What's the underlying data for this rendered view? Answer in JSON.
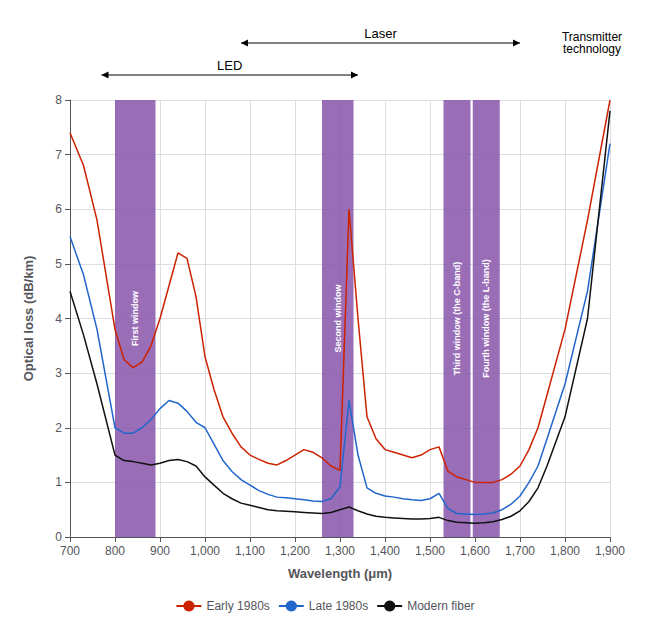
{
  "chart_data": {
    "type": "line",
    "xlabel": "Wavelength (μm)",
    "ylabel": "Optical loss (dB/km)",
    "xlim": [
      700,
      1900
    ],
    "ylim": [
      0,
      8
    ],
    "xticks": [
      700,
      800,
      900,
      1000,
      1100,
      1200,
      1300,
      1400,
      1500,
      1600,
      1700,
      1800,
      1900
    ],
    "yticks": [
      0,
      1,
      2,
      3,
      4,
      5,
      6,
      7,
      8
    ],
    "grid": true,
    "legend": "bottom",
    "windows": [
      {
        "x": 800,
        "width": 90,
        "label": "First window",
        "color": "#8855aa"
      },
      {
        "x": 1260,
        "width": 70,
        "label": "Second window",
        "color": "#8855aa"
      },
      {
        "x": 1530,
        "width": 60,
        "label": "Third window (the C-band)",
        "color": "#8855aa"
      },
      {
        "x": 1595,
        "width": 60,
        "label": "Fourth window (the L-band)",
        "color": "#8855aa"
      }
    ],
    "annotations": [
      {
        "text": "LED",
        "x1": 770,
        "x2": 1340
      },
      {
        "text": "Laser",
        "x1": 1080,
        "x2": 1700
      },
      {
        "text": "Transmitter\ntechnology"
      }
    ],
    "series": [
      {
        "name": "Early 1980s",
        "color": "#cc2200",
        "x": [
          700,
          730,
          760,
          800,
          820,
          840,
          860,
          880,
          900,
          920,
          940,
          960,
          980,
          1000,
          1020,
          1040,
          1060,
          1080,
          1100,
          1120,
          1140,
          1160,
          1180,
          1200,
          1220,
          1240,
          1260,
          1280,
          1300,
          1320,
          1340,
          1360,
          1380,
          1400,
          1420,
          1440,
          1460,
          1480,
          1500,
          1520,
          1540,
          1560,
          1580,
          1600,
          1620,
          1640,
          1660,
          1680,
          1700,
          1720,
          1740,
          1760,
          1800,
          1850,
          1900
        ],
        "values": [
          7.4,
          6.8,
          5.8,
          3.8,
          3.25,
          3.1,
          3.2,
          3.5,
          4.0,
          4.6,
          5.2,
          5.1,
          4.4,
          3.3,
          2.7,
          2.2,
          1.9,
          1.65,
          1.5,
          1.42,
          1.35,
          1.32,
          1.4,
          1.5,
          1.6,
          1.55,
          1.45,
          1.3,
          1.22,
          6.0,
          4.0,
          2.2,
          1.8,
          1.6,
          1.55,
          1.5,
          1.45,
          1.5,
          1.6,
          1.65,
          1.2,
          1.1,
          1.05,
          1.0,
          1.0,
          1.0,
          1.05,
          1.15,
          1.3,
          1.6,
          2.0,
          2.6,
          3.8,
          5.8,
          8.0
        ]
      },
      {
        "name": "Late 1980s",
        "color": "#2266cc",
        "x": [
          700,
          730,
          760,
          800,
          820,
          840,
          860,
          880,
          900,
          920,
          940,
          960,
          980,
          1000,
          1020,
          1040,
          1060,
          1080,
          1100,
          1120,
          1140,
          1160,
          1180,
          1200,
          1220,
          1240,
          1260,
          1280,
          1300,
          1320,
          1340,
          1360,
          1380,
          1400,
          1420,
          1440,
          1460,
          1480,
          1500,
          1520,
          1540,
          1560,
          1580,
          1600,
          1620,
          1640,
          1660,
          1680,
          1700,
          1720,
          1740,
          1760,
          1800,
          1850,
          1900
        ],
        "values": [
          5.5,
          4.8,
          3.8,
          2.0,
          1.9,
          1.9,
          2.0,
          2.15,
          2.35,
          2.5,
          2.45,
          2.3,
          2.1,
          2.0,
          1.7,
          1.4,
          1.2,
          1.05,
          0.95,
          0.85,
          0.78,
          0.73,
          0.72,
          0.7,
          0.68,
          0.66,
          0.65,
          0.7,
          0.92,
          2.5,
          1.5,
          0.9,
          0.8,
          0.75,
          0.73,
          0.7,
          0.68,
          0.67,
          0.7,
          0.8,
          0.52,
          0.43,
          0.42,
          0.41,
          0.42,
          0.44,
          0.5,
          0.6,
          0.75,
          1.0,
          1.3,
          1.8,
          2.8,
          4.5,
          7.2
        ]
      },
      {
        "name": "Modern fiber",
        "color": "#111111",
        "x": [
          700,
          730,
          760,
          800,
          820,
          840,
          860,
          880,
          900,
          920,
          940,
          960,
          980,
          1000,
          1020,
          1040,
          1060,
          1080,
          1100,
          1120,
          1140,
          1160,
          1180,
          1200,
          1220,
          1240,
          1260,
          1280,
          1300,
          1320,
          1340,
          1360,
          1380,
          1400,
          1420,
          1440,
          1460,
          1480,
          1500,
          1520,
          1540,
          1560,
          1580,
          1600,
          1620,
          1640,
          1660,
          1680,
          1700,
          1720,
          1740,
          1760,
          1800,
          1850,
          1900
        ],
        "values": [
          4.5,
          3.7,
          2.8,
          1.5,
          1.4,
          1.38,
          1.35,
          1.32,
          1.35,
          1.4,
          1.42,
          1.38,
          1.3,
          1.1,
          0.95,
          0.8,
          0.7,
          0.62,
          0.58,
          0.54,
          0.5,
          0.48,
          0.47,
          0.46,
          0.45,
          0.44,
          0.43,
          0.45,
          0.5,
          0.55,
          0.48,
          0.42,
          0.38,
          0.36,
          0.35,
          0.34,
          0.33,
          0.33,
          0.34,
          0.36,
          0.3,
          0.27,
          0.26,
          0.25,
          0.26,
          0.28,
          0.32,
          0.38,
          0.48,
          0.65,
          0.9,
          1.3,
          2.2,
          4.0,
          7.8
        ]
      }
    ]
  }
}
